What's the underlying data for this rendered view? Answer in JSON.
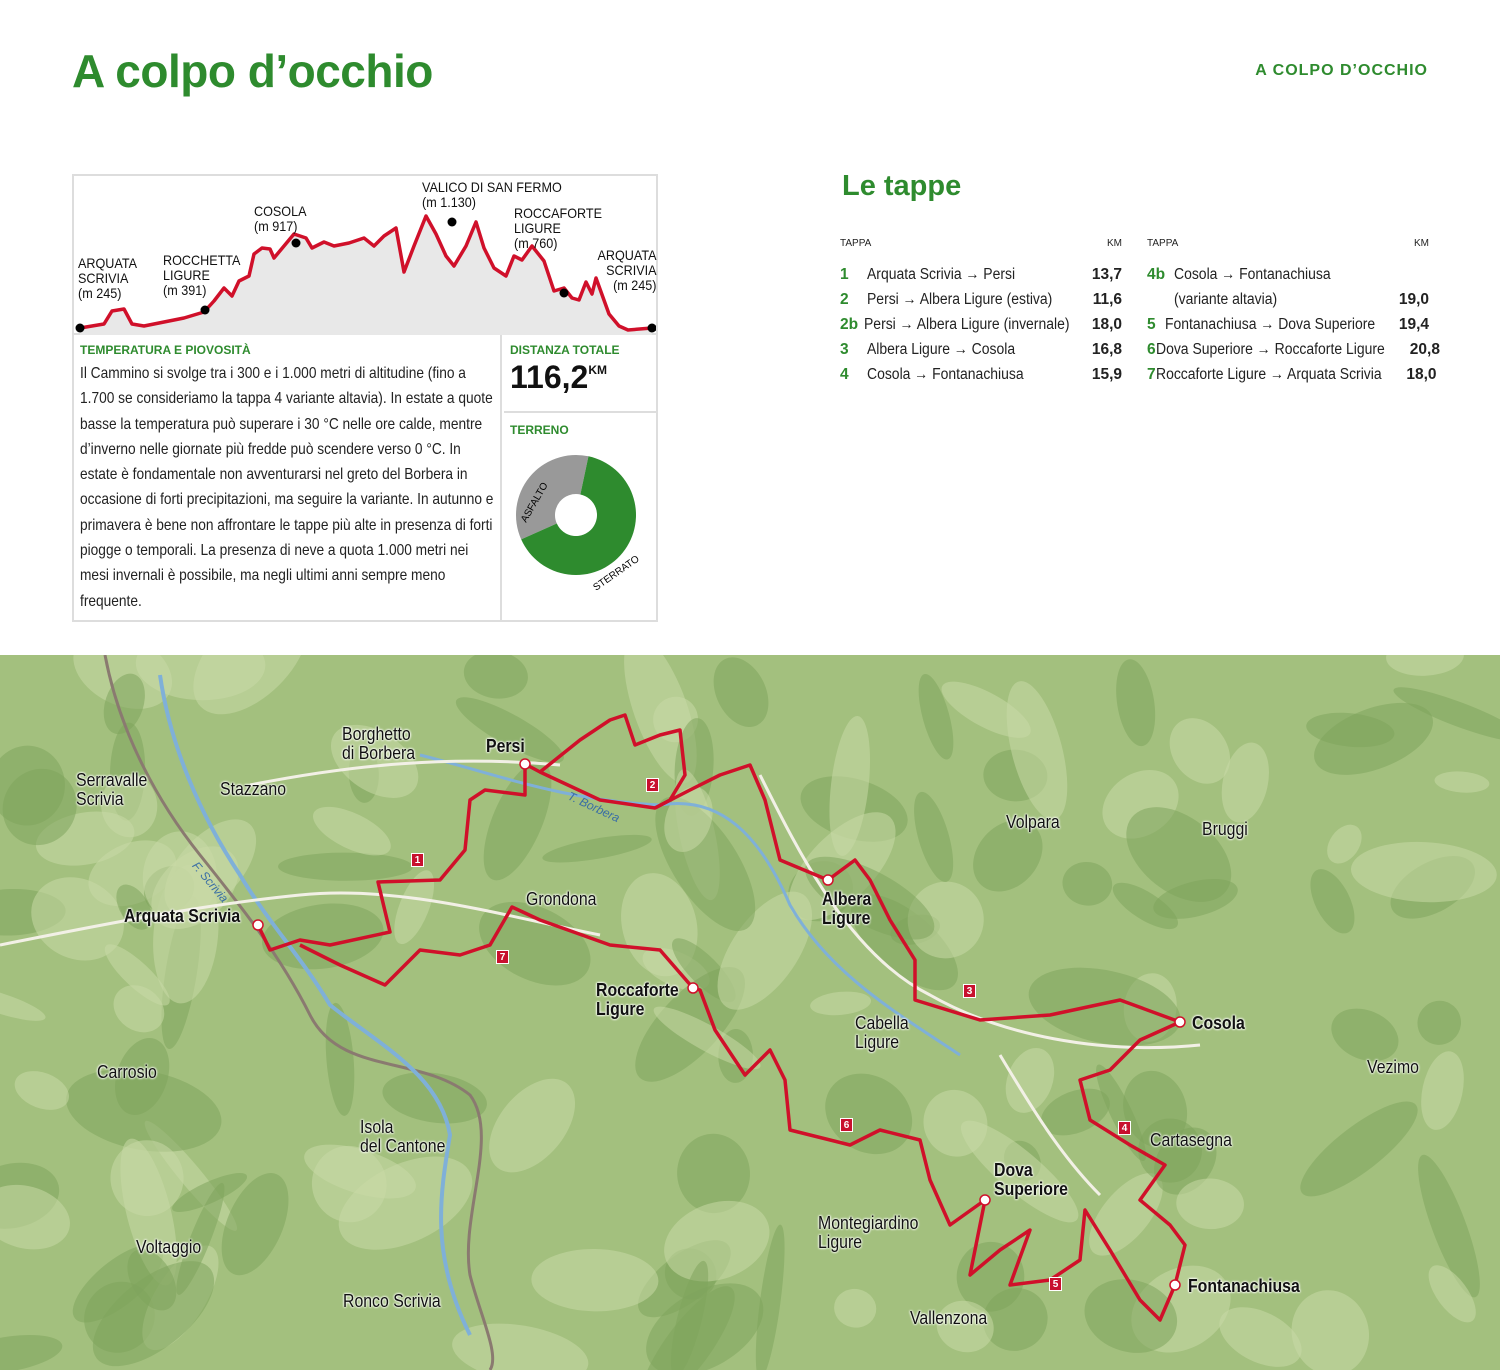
{
  "header": {
    "title": "A colpo d’occhio",
    "running_head": "A COLPO D’OCCHIO"
  },
  "profile": {
    "points": [
      {
        "name": "ARQUATA SCRIVIA",
        "elev": "(m 245)"
      },
      {
        "name": "ROCCHETTA LIGURE",
        "elev": "(m 391)"
      },
      {
        "name": "COSOLA",
        "elev": "(m 917)"
      },
      {
        "name": "VALICO DI SAN FERMO",
        "elev": "(m 1.130)"
      },
      {
        "name": "ROCCAFORTE LIGURE",
        "elev": "(m 760)"
      },
      {
        "name": "ARQUATA SCRIVIA",
        "elev": "(m 245)"
      }
    ],
    "line_color": "#d0102a",
    "fill_color": "#e8e8e8"
  },
  "climate": {
    "title": "TEMPERATURA E PIOVOSITÀ",
    "text": "Il Cammino si svolge tra i 300 e i 1.000 metri di altitudine (fino a 1.700 se consideriamo la tappa 4 variante altavia). In estate a quote basse la temperatura può superare i 30 °C nelle ore calde, mentre d’inverno nelle giornate più fredde può scendere verso 0 °C. In estate è fondamentale non avventurarsi nel greto del Borbera in occasione di forti precipitazioni, ma seguire la variante. In autunno e primavera è bene non affrontare le tappe più alte in presenza di forti piogge o temporali. La presenza di neve a quota 1.000 metri nei mesi invernali è possibile, ma negli ultimi anni sempre meno frequente."
  },
  "distance": {
    "title": "DISTANZA TOTALE",
    "value": "116,2",
    "unit": "KM"
  },
  "terrain": {
    "title": "TERRENO",
    "slices": [
      {
        "label": "ASFALTO",
        "percent": 35,
        "color": "#999999"
      },
      {
        "label": "STERRATO",
        "percent": 65,
        "color": "#2e8b2e"
      }
    ]
  },
  "stages": {
    "title": "Le tappe",
    "col_tappa": "TAPPA",
    "col_km": "KM",
    "left": [
      {
        "n": "1",
        "route": "Arquata Scrivia → Persi",
        "km": "13,7"
      },
      {
        "n": "2",
        "route": "Persi → Albera Ligure (estiva)",
        "km": "11,6"
      },
      {
        "n": "2b",
        "route": "Persi → Albera Ligure (invernale)",
        "km": "18,0"
      },
      {
        "n": "3",
        "route": "Albera Ligure → Cosola",
        "km": "16,8"
      },
      {
        "n": "4",
        "route": "Cosola → Fontanachiusa",
        "km": "15,9"
      }
    ],
    "right": [
      {
        "n": "4b",
        "route": "Cosola → Fontanachiusa",
        "km": ""
      },
      {
        "n": "",
        "route": "(variante altavia)",
        "km": "19,0"
      },
      {
        "n": "5",
        "route": "Fontanachiusa → Dova Superiore",
        "km": "19,4"
      },
      {
        "n": "6",
        "route": "Dova Superiore → Roccaforte Ligure",
        "km": "20,8"
      },
      {
        "n": "7",
        "route": "Roccaforte Ligure → Arquata Scrivia",
        "km": "18,0"
      }
    ]
  },
  "map": {
    "route_color": "#d0102a",
    "stage_towns": [
      "Arquata Scrivia",
      "Persi",
      "Albera Ligure",
      "Cosola",
      "Fontanachiusa",
      "Dova Superiore",
      "Roccaforte Ligure"
    ],
    "towns": [
      "Borghetto di Borbera",
      "Serravalle Scrivia",
      "Stazzano",
      "Grondona",
      "Volpara",
      "Bruggi",
      "Cabella Ligure",
      "Vezimo",
      "Cartasegna",
      "Carrosio",
      "Isola del Cantone",
      "Voltaggio",
      "Montegiardino Ligure",
      "Ronco Scrivia",
      "Vallenzona"
    ],
    "rivers": [
      "T. Borbera",
      "F. Scrivia"
    ],
    "stage_markers": [
      "1",
      "2",
      "3",
      "4",
      "5",
      "6",
      "7"
    ]
  }
}
